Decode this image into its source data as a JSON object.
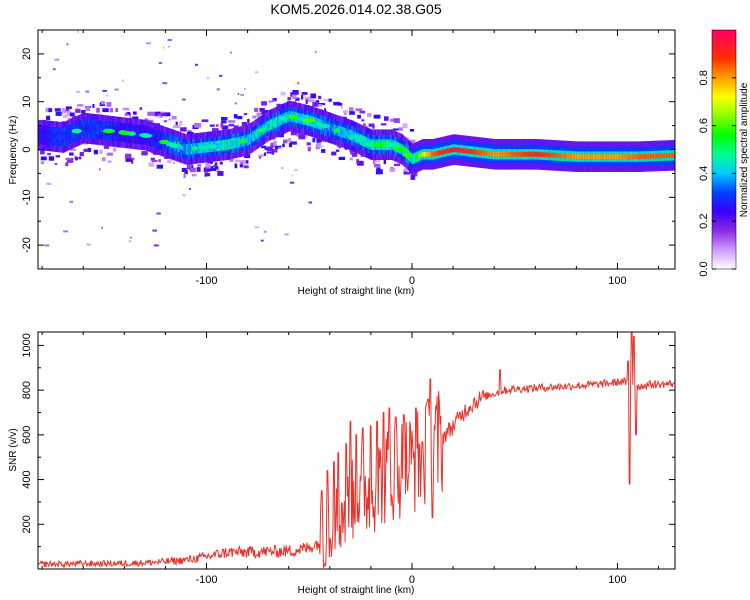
{
  "title": "KOM5.2026.014.02.38.G05",
  "colors": {
    "snr_line": "#e8322a",
    "frame": "#000000"
  },
  "chart_data": [
    {
      "type": "heatmap",
      "name": "spectrogram",
      "title": "KOM5.2026.014.02.38.G05",
      "xlabel": "Height of straight line (km)",
      "ylabel": "Frequency (Hz)",
      "xlim": [
        -182,
        128
      ],
      "ylim": [
        -25,
        25
      ],
      "xticks": [
        -100,
        0,
        100
      ],
      "xtick_labels": [
        "-100",
        "0",
        "100"
      ],
      "yticks": [
        -20,
        -10,
        0,
        10,
        20
      ],
      "ytick_labels": [
        "-20",
        "-10",
        "0",
        "10",
        "20"
      ],
      "ridge_x": [
        -180,
        -170,
        -160,
        -150,
        -140,
        -130,
        -120,
        -110,
        -100,
        -90,
        -80,
        -70,
        -60,
        -50,
        -40,
        -30,
        -20,
        -10,
        -5,
        0,
        5,
        10,
        20,
        40,
        60,
        80,
        100,
        110,
        128
      ],
      "ridge_y": [
        3,
        2.5,
        4.5,
        4,
        3.5,
        3,
        1.5,
        0,
        0.5,
        1,
        2,
        5,
        7,
        6,
        4.5,
        3,
        1,
        1,
        0,
        -2,
        -1,
        -1,
        0,
        -1,
        -1,
        -1.5,
        -1.5,
        -1.5,
        -1.2
      ],
      "ridge_amplitude": [
        0.25,
        0.3,
        0.3,
        0.3,
        0.25,
        0.25,
        0.3,
        0.4,
        0.4,
        0.45,
        0.4,
        0.45,
        0.4,
        0.45,
        0.35,
        0.4,
        0.5,
        0.6,
        0.5,
        0.45,
        0.7,
        0.85,
        0.95,
        0.8,
        0.9,
        0.8,
        0.8,
        0.85,
        0.85
      ],
      "colorbar": {
        "label": "Normalized spectral amplitude",
        "range": [
          0,
          1
        ],
        "ticks": [
          0.0,
          0.2,
          0.4,
          0.6,
          0.8
        ],
        "tick_labels": [
          "0.0",
          "0.2",
          "0.4",
          "0.6",
          "0.8"
        ]
      }
    },
    {
      "type": "line",
      "name": "snr",
      "xlabel": "Height of straight line (km)",
      "ylabel": "SNR (v/v)",
      "xlim": [
        -182,
        128
      ],
      "ylim": [
        0,
        1060
      ],
      "xticks": [
        -100,
        0,
        100
      ],
      "xtick_labels": [
        "-100",
        "0",
        "100"
      ],
      "yticks": [
        200,
        400,
        600,
        800,
        1000
      ],
      "ytick_labels": [
        "200",
        "400",
        "600",
        "800",
        "1000"
      ],
      "x": [
        -182,
        -170,
        -160,
        -150,
        -140,
        -130,
        -120,
        -110,
        -100,
        -90,
        -80,
        -70,
        -60,
        -50,
        -45,
        -40,
        -35,
        -30,
        -25,
        -20,
        -15,
        -10,
        -5,
        0,
        5,
        10,
        15,
        20,
        25,
        30,
        35,
        40,
        45,
        50,
        60,
        70,
        80,
        90,
        100,
        103,
        106,
        108,
        110,
        115,
        120,
        128
      ],
      "y": [
        22,
        22,
        24,
        24,
        25,
        28,
        33,
        40,
        55,
        75,
        75,
        78,
        80,
        95,
        120,
        180,
        240,
        290,
        330,
        360,
        400,
        430,
        460,
        480,
        500,
        530,
        590,
        640,
        700,
        745,
        770,
        785,
        800,
        805,
        810,
        815,
        820,
        825,
        835,
        840,
        820,
        830,
        815,
        825,
        825,
        830
      ],
      "spikes": [
        {
          "x": -44,
          "y": 350
        },
        {
          "x": -41,
          "y": 440
        },
        {
          "x": -38,
          "y": 480
        },
        {
          "x": -36,
          "y": 520
        },
        {
          "x": -32,
          "y": 560
        },
        {
          "x": -30,
          "y": 660
        },
        {
          "x": -27,
          "y": 600
        },
        {
          "x": -24,
          "y": 630
        },
        {
          "x": -20,
          "y": 640
        },
        {
          "x": -17,
          "y": 660
        },
        {
          "x": -14,
          "y": 700
        },
        {
          "x": -11,
          "y": 720
        },
        {
          "x": -8,
          "y": 680
        },
        {
          "x": -4,
          "y": 690
        },
        {
          "x": 2,
          "y": 720
        },
        {
          "x": 8,
          "y": 760
        },
        {
          "x": 9,
          "y": 850
        },
        {
          "x": 10,
          "y": 230
        },
        {
          "x": 43,
          "y": 890
        },
        {
          "x": 105,
          "y": 930
        },
        {
          "x": 106,
          "y": 380
        },
        {
          "x": 107,
          "y": 1060
        },
        {
          "x": 108,
          "y": 1040
        },
        {
          "x": 109,
          "y": 600
        }
      ]
    }
  ]
}
